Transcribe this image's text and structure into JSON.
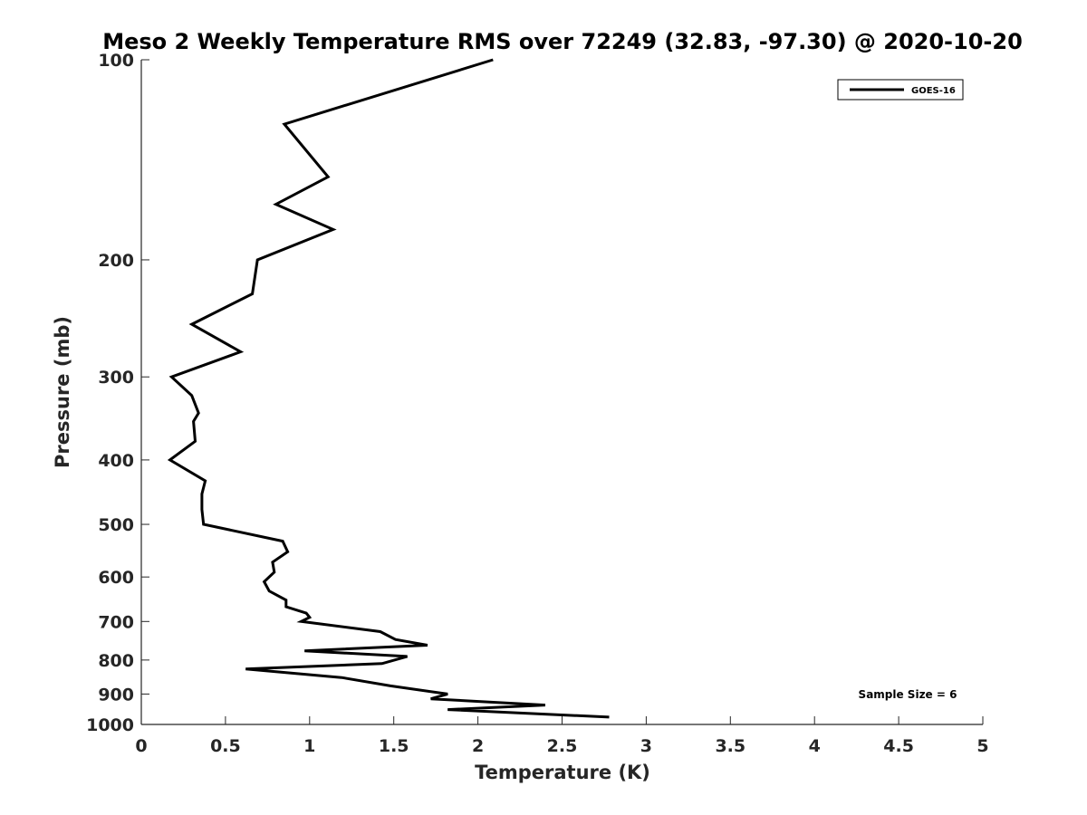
{
  "chart_data": {
    "type": "line",
    "title": "Meso 2 Weekly Temperature RMS over 72249 (32.83, -97.30) @ 2020-10-20",
    "xlabel": "Temperature (K)",
    "ylabel": "Pressure (mb)",
    "xlim": [
      0,
      5
    ],
    "ylim": [
      100,
      1000
    ],
    "y_scale": "log",
    "y_reversed": true,
    "x_ticks": [
      "0",
      "0.5",
      "1",
      "1.5",
      "2",
      "2.5",
      "3",
      "3.5",
      "4",
      "4.5",
      "5"
    ],
    "y_ticks": [
      "100",
      "200",
      "300",
      "400",
      "500",
      "600",
      "700",
      "800",
      "900",
      "1000"
    ],
    "grid": false,
    "legend_position": "top-right",
    "annotation": "Sample Size = 6",
    "series": [
      {
        "name": "GOES-16",
        "color": "#000000",
        "points": [
          [
            2.09,
            100
          ],
          [
            0.85,
            125
          ],
          [
            1.11,
            150
          ],
          [
            0.8,
            165
          ],
          [
            1.14,
            180
          ],
          [
            0.69,
            200
          ],
          [
            0.66,
            225
          ],
          [
            0.3,
            250
          ],
          [
            0.59,
            275
          ],
          [
            0.18,
            300
          ],
          [
            0.3,
            320
          ],
          [
            0.34,
            340
          ],
          [
            0.31,
            350
          ],
          [
            0.32,
            375
          ],
          [
            0.17,
            400
          ],
          [
            0.38,
            430
          ],
          [
            0.36,
            450
          ],
          [
            0.36,
            475
          ],
          [
            0.37,
            500
          ],
          [
            0.84,
            530
          ],
          [
            0.87,
            550
          ],
          [
            0.78,
            570
          ],
          [
            0.79,
            590
          ],
          [
            0.73,
            610
          ],
          [
            0.76,
            630
          ],
          [
            0.86,
            650
          ],
          [
            0.86,
            665
          ],
          [
            0.98,
            680
          ],
          [
            1.0,
            690
          ],
          [
            0.95,
            700
          ],
          [
            1.42,
            725
          ],
          [
            1.51,
            745
          ],
          [
            1.7,
            760
          ],
          [
            0.97,
            775
          ],
          [
            1.58,
            790
          ],
          [
            1.43,
            810
          ],
          [
            0.62,
            825
          ],
          [
            1.19,
            850
          ],
          [
            1.48,
            875
          ],
          [
            1.82,
            900
          ],
          [
            1.72,
            915
          ],
          [
            2.4,
            935
          ],
          [
            1.82,
            950
          ],
          [
            2.78,
            975
          ]
        ]
      }
    ]
  }
}
